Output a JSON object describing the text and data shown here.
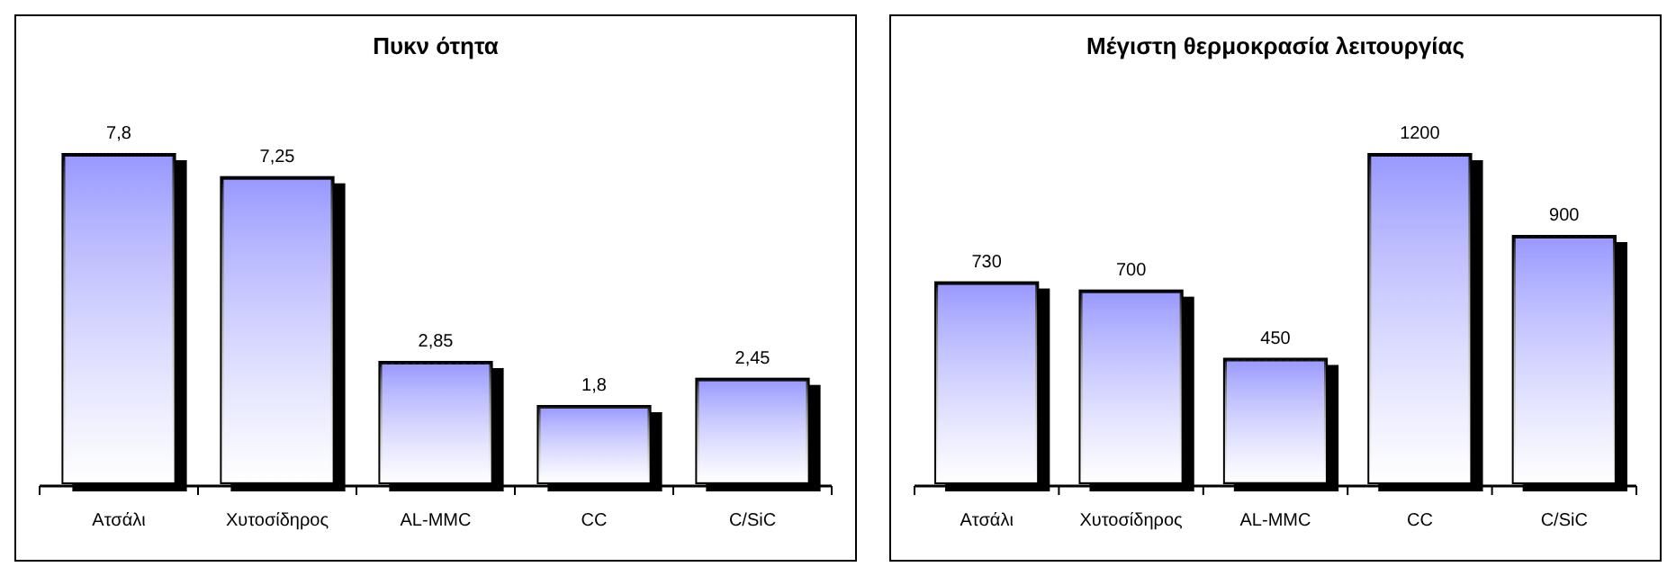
{
  "chart_data": [
    {
      "type": "bar",
      "title": "Πυκν ότητα",
      "categories": [
        "Ατσάλι",
        "Χυτοσίδηρος",
        "AL-MMC",
        "CC",
        "C/SiC"
      ],
      "values": [
        7.8,
        7.25,
        2.85,
        1.8,
        2.45
      ],
      "value_labels": [
        "7,8",
        "7,25",
        "2,85",
        "1,8",
        "2,45"
      ],
      "color": "#9999ff"
    },
    {
      "type": "bar",
      "title": "Μέγιστη θερμοκρασία λειτουργίας",
      "categories": [
        "Ατσάλι",
        "Χυτοσίδηρος",
        "AL-MMC",
        "CC",
        "C/SiC"
      ],
      "values": [
        730,
        700,
        450,
        1200,
        900
      ],
      "data_labels": true,
      "color": "#9999ff"
    }
  ]
}
